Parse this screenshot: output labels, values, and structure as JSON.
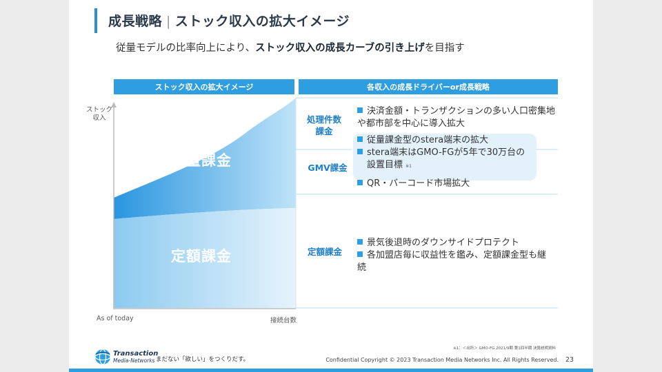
{
  "header": {
    "title_main": "成長戦略",
    "title_sep": "|",
    "title_sub": "ストック収入の拡大イメージ",
    "subtitle_pre": "従量モデルの比率向上により、",
    "subtitle_bold": "ストック収入の成長カーブの引き上げ",
    "subtitle_post": "を目指す"
  },
  "left_panel": {
    "header": "ストック収入の拡大イメージ",
    "y_axis_label": "ストック\n収入",
    "x_axis_start": "As of today",
    "x_axis_end": "接続台数",
    "upper_area_label": "従量課金",
    "lower_area_label": "定額課金"
  },
  "right_panel": {
    "header": "各収入の成長ドライバーor成長戦略",
    "groups": [
      {
        "label": "処理件数\n課金"
      },
      {
        "label": "GMV課金"
      },
      {
        "label": "定額課金"
      }
    ],
    "items": [
      "決済金額・トランザクションの多い人口密集地や都市部を中心に導入拡大",
      "従量課金型のstera端末の拡大",
      "stera端末はGMO-FGが5年で30万台の",
      "設置目標",
      "※1",
      "QR・バーコード市場拡大",
      "景気後退時のダウンサイドプロテクト",
      "各加盟店毎に収益性を鑑み、定額課金型も継続"
    ]
  },
  "footnote": "※1：＜出所＞ GMO-FG 2021/9期 第1四半期 決算説明資料",
  "footer": {
    "logo_line1": "Transaction",
    "logo_line2": "Media-Networks",
    "tagline": "まだない「欲しい」をつくりだす。",
    "copyright": "Confidential  Copyright © 2023 Transaction Media Networks Inc. All Rights Reserved.",
    "page_number": "23"
  },
  "colors": {
    "accent": "#2e9ee0",
    "title_bar": "#2c8fd6",
    "label_blue": "#1e7ec8",
    "bubble": "#e3f1fb"
  }
}
